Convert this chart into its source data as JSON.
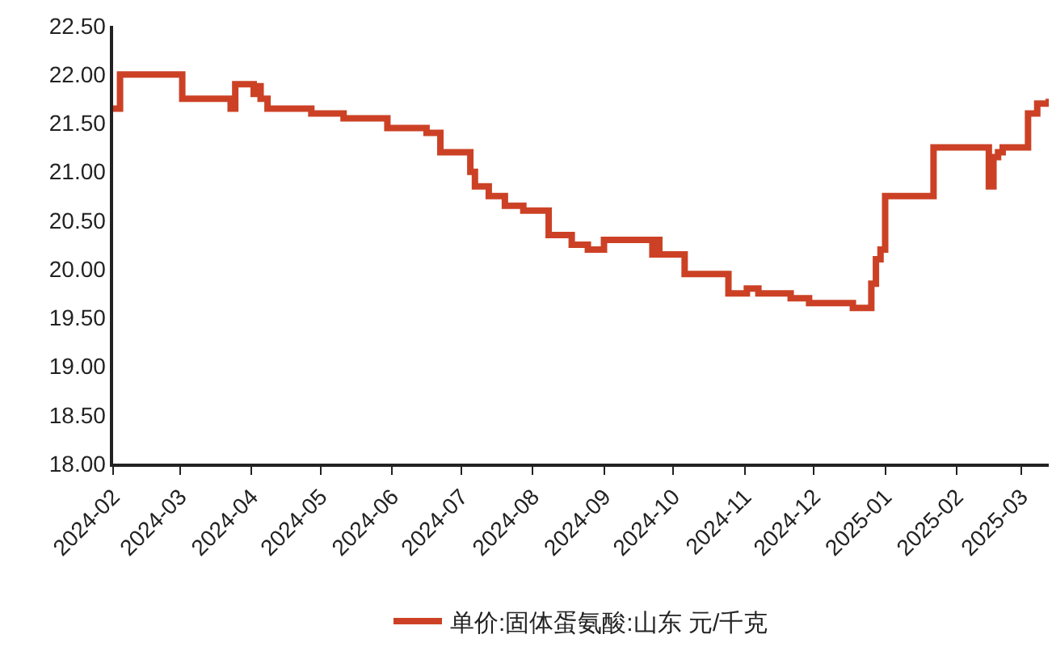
{
  "chart_data": {
    "type": "step",
    "x": [
      "2024-02-01",
      "2024-02-04",
      "2024-03-02",
      "2024-03-04",
      "2024-03-23",
      "2024-03-25",
      "2024-04-02",
      "2024-04-03",
      "2024-04-05",
      "2024-04-06",
      "2024-04-08",
      "2024-04-27",
      "2024-05-11",
      "2024-05-30",
      "2024-06-16",
      "2024-06-22",
      "2024-07-05",
      "2024-07-07",
      "2024-07-08",
      "2024-07-13",
      "2024-07-20",
      "2024-07-28",
      "2024-08-08",
      "2024-08-18",
      "2024-08-25",
      "2024-09-01",
      "2024-09-22",
      "2024-09-23",
      "2024-09-25",
      "2024-09-27",
      "2024-10-06",
      "2024-10-25",
      "2024-11-02",
      "2024-11-07",
      "2024-11-21",
      "2024-11-29",
      "2024-12-18",
      "2024-12-26",
      "2024-12-28",
      "2024-12-30",
      "2025-01-01",
      "2025-01-03",
      "2025-01-06",
      "2025-01-22",
      "2025-01-24",
      "2025-02-15",
      "2025-02-17",
      "2025-02-19",
      "2025-02-21",
      "2025-02-22",
      "2025-03-04",
      "2025-03-05",
      "2025-03-08",
      "2025-03-13"
    ],
    "series": [
      {
        "name": "单价:固体蛋氨酸:山东 元/千克",
        "color": "#cc4125",
        "values": [
          21.65,
          22.0,
          21.75,
          21.75,
          21.65,
          21.9,
          21.8,
          21.88,
          21.75,
          21.75,
          21.65,
          21.6,
          21.55,
          21.45,
          21.4,
          21.2,
          21.0,
          20.85,
          20.85,
          20.75,
          20.65,
          20.6,
          20.35,
          20.25,
          20.2,
          20.3,
          20.15,
          20.3,
          20.15,
          20.15,
          19.95,
          19.75,
          19.8,
          19.75,
          19.7,
          19.65,
          19.6,
          19.85,
          20.1,
          20.2,
          20.75,
          20.75,
          20.75,
          21.25,
          21.25,
          20.85,
          21.15,
          21.2,
          21.25,
          21.25,
          21.6,
          21.6,
          21.7,
          21.75
        ]
      }
    ],
    "xlim": [
      "2024-02-01",
      "2025-03-13"
    ],
    "xticks": [
      "2024-02",
      "2024-03",
      "2024-04",
      "2024-05",
      "2024-06",
      "2024-07",
      "2024-08",
      "2024-09",
      "2024-10",
      "2024-11",
      "2024-12",
      "2025-01",
      "2025-02",
      "2025-03"
    ],
    "ylim": [
      18.0,
      22.5
    ],
    "yticks": [
      {
        "value": 18.0,
        "label": "18.00"
      },
      {
        "value": 18.5,
        "label": "18.50"
      },
      {
        "value": 19.0,
        "label": "19.00"
      },
      {
        "value": 19.5,
        "label": "19.50"
      },
      {
        "value": 20.0,
        "label": "20.00"
      },
      {
        "value": 20.5,
        "label": "20.50"
      },
      {
        "value": 21.0,
        "label": "21.00"
      },
      {
        "value": 21.5,
        "label": "21.50"
      },
      {
        "value": 22.0,
        "label": "22.00"
      },
      {
        "value": 22.5,
        "label": "22.50"
      }
    ],
    "legend": "bottom",
    "line_style": "solid"
  }
}
